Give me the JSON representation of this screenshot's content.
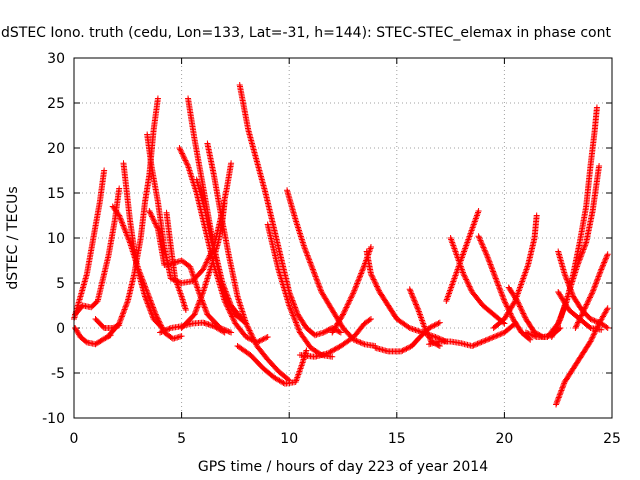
{
  "chart_data": {
    "type": "scatter",
    "title": "dSTEC Iono. truth (cedu, Lon=133, Lat=-31, h=144): STEC-STEC_elemax in phase cont",
    "xlabel": "GPS time / hours of day 223 of year 2014",
    "ylabel": "dSTEC  / TECUs",
    "xlim": [
      0,
      25
    ],
    "ylim": [
      -10,
      30
    ],
    "xticks": [
      "0",
      "5",
      "10",
      "15",
      "20",
      "25"
    ],
    "yticks": [
      "-10",
      "-5",
      "0",
      "5",
      "10",
      "15",
      "20",
      "25",
      "30"
    ],
    "grid": true,
    "marker": "+",
    "color": "#ff0000",
    "series": [
      {
        "points": [
          [
            0.0,
            1.0
          ],
          [
            0.3,
            3.5
          ],
          [
            0.6,
            6.0
          ],
          [
            0.9,
            10.0
          ],
          [
            1.2,
            14.0
          ],
          [
            1.4,
            17.5
          ]
        ]
      },
      {
        "points": [
          [
            0.05,
            0.0
          ],
          [
            0.3,
            -1.0
          ],
          [
            0.6,
            -1.6
          ],
          [
            1.0,
            -1.8
          ],
          [
            1.4,
            -1.2
          ],
          [
            1.7,
            -0.8
          ]
        ]
      },
      {
        "points": [
          [
            0.05,
            1.5
          ],
          [
            0.4,
            2.5
          ],
          [
            0.8,
            2.3
          ],
          [
            1.1,
            3.0
          ],
          [
            1.6,
            8.0
          ],
          [
            1.9,
            12.0
          ],
          [
            2.1,
            15.5
          ]
        ]
      },
      {
        "points": [
          [
            1.6,
            -0.9
          ],
          [
            2.1,
            0.5
          ],
          [
            2.5,
            3.0
          ],
          [
            2.8,
            6.0
          ],
          [
            3.1,
            10.0
          ],
          [
            3.3,
            14.0
          ],
          [
            3.5,
            17.0
          ],
          [
            3.7,
            22.0
          ],
          [
            3.9,
            25.5
          ]
        ]
      },
      {
        "points": [
          [
            1.8,
            13.5
          ],
          [
            2.1,
            12.5
          ],
          [
            2.6,
            9.5
          ],
          [
            3.0,
            6.5
          ],
          [
            3.4,
            4.0
          ],
          [
            3.8,
            1.5
          ],
          [
            4.2,
            -0.5
          ],
          [
            4.6,
            -1.2
          ],
          [
            5.0,
            -0.9
          ]
        ]
      },
      {
        "points": [
          [
            2.3,
            18.3
          ],
          [
            2.6,
            12.0
          ],
          [
            2.9,
            7.0
          ],
          [
            3.3,
            3.5
          ],
          [
            3.7,
            1.0
          ],
          [
            4.1,
            0.0
          ]
        ]
      },
      {
        "points": [
          [
            1.0,
            1.0
          ],
          [
            1.4,
            0.0
          ],
          [
            1.8,
            0.0
          ],
          [
            2.1,
            0.3
          ]
        ]
      },
      {
        "points": [
          [
            3.4,
            21.5
          ],
          [
            3.6,
            18.0
          ],
          [
            3.9,
            14.0
          ],
          [
            4.2,
            9.0
          ],
          [
            4.5,
            5.5
          ],
          [
            5.0,
            5.0
          ],
          [
            5.5,
            5.2
          ],
          [
            6.0,
            6.5
          ],
          [
            6.5,
            9.0
          ],
          [
            6.8,
            12.0
          ],
          [
            7.1,
            15.5
          ],
          [
            7.3,
            18.3
          ]
        ]
      },
      {
        "points": [
          [
            3.5,
            13.0
          ],
          [
            3.9,
            11.0
          ],
          [
            4.2,
            7.0
          ],
          [
            4.6,
            7.2
          ],
          [
            5.0,
            7.5
          ],
          [
            5.4,
            6.8
          ],
          [
            5.8,
            4.0
          ],
          [
            6.2,
            1.5
          ],
          [
            6.8,
            0.0
          ],
          [
            7.3,
            -0.5
          ]
        ]
      },
      {
        "points": [
          [
            4.3,
            12.8
          ],
          [
            4.5,
            9.0
          ],
          [
            4.7,
            5.5
          ],
          [
            5.0,
            3.5
          ],
          [
            5.2,
            2.0
          ]
        ]
      },
      {
        "points": [
          [
            4.0,
            -0.5
          ],
          [
            4.5,
            0.0
          ],
          [
            5.0,
            0.2
          ],
          [
            5.5,
            0.5
          ],
          [
            6.0,
            0.6
          ],
          [
            6.5,
            0.2
          ],
          [
            7.0,
            -0.5
          ]
        ]
      },
      {
        "points": [
          [
            4.9,
            20.0
          ],
          [
            5.3,
            18.0
          ],
          [
            5.7,
            15.0
          ],
          [
            6.1,
            11.0
          ],
          [
            6.5,
            7.0
          ],
          [
            7.0,
            3.0
          ],
          [
            7.5,
            0.5
          ],
          [
            8.0,
            -1.0
          ],
          [
            8.5,
            -1.6
          ],
          [
            9.0,
            -1.0
          ]
        ]
      },
      {
        "points": [
          [
            5.3,
            25.5
          ],
          [
            5.6,
            21.0
          ],
          [
            5.9,
            17.0
          ],
          [
            6.2,
            13.0
          ],
          [
            6.5,
            9.0
          ],
          [
            6.9,
            5.0
          ],
          [
            7.3,
            2.5
          ],
          [
            7.8,
            1.0
          ]
        ]
      },
      {
        "points": [
          [
            5.7,
            16.5
          ],
          [
            6.1,
            13.0
          ],
          [
            6.4,
            9.5
          ],
          [
            6.7,
            6.5
          ],
          [
            7.0,
            3.5
          ],
          [
            7.5,
            1.5
          ],
          [
            8.0,
            0.5
          ]
        ]
      },
      {
        "points": [
          [
            5.0,
            0.0
          ],
          [
            5.6,
            1.5
          ],
          [
            6.0,
            4.0
          ],
          [
            6.4,
            7.0
          ],
          [
            6.7,
            9.5
          ],
          [
            6.9,
            12.0
          ],
          [
            7.0,
            14.0
          ]
        ]
      },
      {
        "points": [
          [
            6.2,
            20.5
          ],
          [
            6.5,
            17.0
          ],
          [
            6.8,
            13.0
          ],
          [
            7.2,
            8.0
          ],
          [
            7.6,
            3.5
          ],
          [
            8.0,
            0.5
          ],
          [
            8.5,
            -2.0
          ],
          [
            9.0,
            -3.5
          ],
          [
            9.5,
            -4.8
          ],
          [
            10.0,
            -5.8
          ]
        ]
      },
      {
        "points": [
          [
            7.7,
            27.0
          ],
          [
            8.1,
            22.0
          ],
          [
            8.5,
            18.5
          ],
          [
            8.9,
            15.0
          ],
          [
            9.3,
            11.0
          ],
          [
            9.7,
            7.0
          ],
          [
            10.0,
            4.0
          ],
          [
            10.4,
            1.5
          ],
          [
            10.8,
            0.0
          ],
          [
            11.2,
            -0.8
          ],
          [
            11.6,
            -0.5
          ],
          [
            12.0,
            0.0
          ],
          [
            12.4,
            -0.5
          ]
        ]
      },
      {
        "points": [
          [
            7.6,
            -2.0
          ],
          [
            8.2,
            -3.0
          ],
          [
            8.8,
            -4.5
          ],
          [
            9.3,
            -5.5
          ],
          [
            9.8,
            -6.2
          ],
          [
            10.3,
            -6.0
          ],
          [
            10.6,
            -4.0
          ],
          [
            10.8,
            -2.5
          ]
        ]
      },
      {
        "points": [
          [
            9.0,
            11.5
          ],
          [
            9.5,
            6.5
          ],
          [
            10.0,
            2.5
          ],
          [
            10.5,
            -0.5
          ],
          [
            11.0,
            -2.2
          ],
          [
            11.5,
            -3.0
          ],
          [
            12.0,
            -3.2
          ]
        ]
      },
      {
        "points": [
          [
            9.9,
            15.3
          ],
          [
            10.3,
            12.0
          ],
          [
            10.7,
            9.0
          ],
          [
            11.1,
            6.5
          ],
          [
            11.5,
            4.0
          ],
          [
            12.0,
            2.0
          ],
          [
            12.5,
            0.0
          ],
          [
            13.0,
            -1.3
          ],
          [
            13.5,
            -1.8
          ],
          [
            14.0,
            -2.0
          ]
        ]
      },
      {
        "points": [
          [
            12.0,
            -0.5
          ],
          [
            12.5,
            1.5
          ],
          [
            13.0,
            4.0
          ],
          [
            13.5,
            7.0
          ],
          [
            13.8,
            9.0
          ]
        ]
      },
      {
        "points": [
          [
            10.5,
            -3.0
          ],
          [
            11.2,
            -3.2
          ],
          [
            11.8,
            -2.8
          ],
          [
            12.4,
            -2.0
          ],
          [
            13.0,
            -1.0
          ],
          [
            13.5,
            0.5
          ],
          [
            13.8,
            1.0
          ]
        ]
      },
      {
        "points": [
          [
            13.6,
            8.5
          ],
          [
            13.8,
            6.0
          ],
          [
            14.2,
            4.0
          ],
          [
            14.6,
            2.5
          ],
          [
            15.0,
            1.0
          ],
          [
            15.6,
            0.0
          ],
          [
            16.2,
            -0.5
          ],
          [
            16.8,
            -1.0
          ],
          [
            17.3,
            -1.5
          ]
        ]
      },
      {
        "points": [
          [
            14.0,
            -2.2
          ],
          [
            14.6,
            -2.6
          ],
          [
            15.2,
            -2.6
          ],
          [
            15.7,
            -2.0
          ],
          [
            16.0,
            -1.2
          ],
          [
            16.5,
            0.0
          ],
          [
            17.0,
            0.6
          ]
        ]
      },
      {
        "points": [
          [
            15.6,
            4.3
          ],
          [
            16.0,
            2.0
          ],
          [
            16.3,
            0.0
          ],
          [
            16.6,
            -1.5
          ],
          [
            17.0,
            -2.0
          ]
        ]
      },
      {
        "points": [
          [
            16.5,
            -1.8
          ],
          [
            17.0,
            -1.5
          ],
          [
            17.5,
            -1.5
          ],
          [
            18.0,
            -1.7
          ],
          [
            18.5,
            -2.0
          ],
          [
            19.0,
            -1.5
          ],
          [
            19.5,
            -1.0
          ],
          [
            20.0,
            -0.5
          ],
          [
            20.5,
            0.5
          ]
        ]
      },
      {
        "points": [
          [
            17.3,
            3.0
          ],
          [
            17.6,
            5.0
          ],
          [
            17.9,
            7.0
          ],
          [
            18.2,
            9.0
          ],
          [
            18.5,
            11.0
          ],
          [
            18.8,
            13.0
          ]
        ]
      },
      {
        "points": [
          [
            17.5,
            10.0
          ],
          [
            17.8,
            8.0
          ],
          [
            18.1,
            6.0
          ],
          [
            18.5,
            4.0
          ],
          [
            19.0,
            2.5
          ],
          [
            19.5,
            1.5
          ],
          [
            20.0,
            0.5
          ]
        ]
      },
      {
        "points": [
          [
            18.8,
            10.2
          ],
          [
            19.2,
            8.0
          ],
          [
            19.6,
            5.5
          ],
          [
            20.0,
            3.0
          ],
          [
            20.4,
            1.0
          ],
          [
            20.8,
            -0.5
          ],
          [
            21.2,
            -1.3
          ]
        ]
      },
      {
        "points": [
          [
            19.5,
            0.0
          ],
          [
            20.0,
            1.0
          ],
          [
            20.5,
            3.0
          ],
          [
            20.8,
            5.0
          ],
          [
            21.1,
            7.0
          ],
          [
            21.4,
            10.0
          ],
          [
            21.5,
            12.5
          ]
        ]
      },
      {
        "points": [
          [
            20.2,
            4.5
          ],
          [
            20.6,
            3.0
          ],
          [
            21.0,
            1.0
          ],
          [
            21.4,
            -0.5
          ],
          [
            21.8,
            -1.0
          ],
          [
            22.2,
            -0.8
          ],
          [
            22.6,
            0.0
          ]
        ]
      },
      {
        "points": [
          [
            21.0,
            -0.5
          ],
          [
            21.5,
            -1.0
          ],
          [
            22.0,
            -1.0
          ],
          [
            22.5,
            0.5
          ],
          [
            22.9,
            3.0
          ],
          [
            23.2,
            6.0
          ],
          [
            23.5,
            9.5
          ],
          [
            23.8,
            13.5
          ],
          [
            24.0,
            18.0
          ],
          [
            24.2,
            22.0
          ],
          [
            24.3,
            24.5
          ]
        ]
      },
      {
        "points": [
          [
            22.5,
            8.5
          ],
          [
            22.8,
            6.0
          ],
          [
            23.2,
            3.5
          ],
          [
            23.6,
            2.0
          ],
          [
            24.0,
            1.0
          ],
          [
            24.5,
            0.5
          ],
          [
            24.8,
            0.0
          ]
        ]
      },
      {
        "points": [
          [
            22.2,
            -1.0
          ],
          [
            22.6,
            1.0
          ],
          [
            23.0,
            4.0
          ],
          [
            23.4,
            7.0
          ],
          [
            23.8,
            9.5
          ],
          [
            24.1,
            13.0
          ],
          [
            24.4,
            18.0
          ]
        ]
      },
      {
        "points": [
          [
            22.4,
            -8.5
          ],
          [
            22.8,
            -6.0
          ],
          [
            23.2,
            -4.5
          ],
          [
            23.6,
            -3.0
          ],
          [
            24.0,
            -1.5
          ],
          [
            24.4,
            0.5
          ],
          [
            24.8,
            2.2
          ]
        ]
      },
      {
        "points": [
          [
            22.5,
            4.0
          ],
          [
            23.0,
            2.0
          ],
          [
            23.5,
            1.0
          ],
          [
            24.0,
            0.0
          ],
          [
            24.5,
            -0.2
          ]
        ]
      },
      {
        "points": [
          [
            23.3,
            0.0
          ],
          [
            23.7,
            2.0
          ],
          [
            24.1,
            4.0
          ],
          [
            24.5,
            6.5
          ],
          [
            24.8,
            8.2
          ]
        ]
      }
    ]
  }
}
